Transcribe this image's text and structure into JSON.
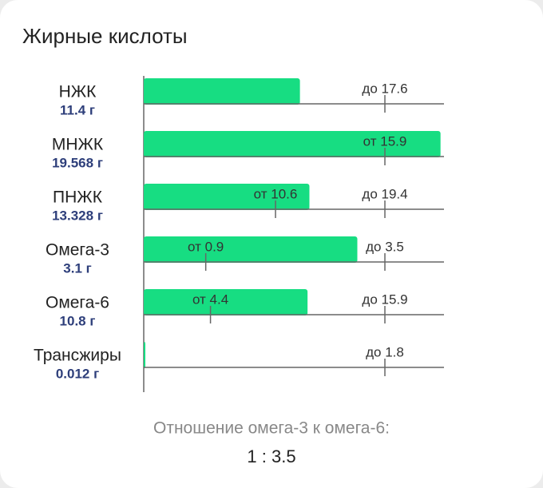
{
  "title": "Жирные кислоты",
  "rows": [
    {
      "label": "НЖК",
      "value": 11.4,
      "value_label": "11.4 г",
      "refs": [
        {
          "label": "до 17.6",
          "value": 17.6
        }
      ]
    },
    {
      "label": "МНЖК",
      "value": 19.568,
      "value_label": "19.568 г",
      "refs": [
        {
          "label": "от 15.9",
          "value": 15.9
        }
      ]
    },
    {
      "label": "ПНЖК",
      "value": 13.328,
      "value_label": "13.328 г",
      "refs": [
        {
          "label": "от 10.6",
          "value": 10.6
        },
        {
          "label": "до 19.4",
          "value": 19.4
        }
      ]
    },
    {
      "label": "Омега-3",
      "value": 3.1,
      "value_label": "3.1 г",
      "refs": [
        {
          "label": "от 0.9",
          "value": 0.9
        },
        {
          "label": "до 3.5",
          "value": 3.5
        }
      ]
    },
    {
      "label": "Омега-6",
      "value": 10.8,
      "value_label": "10.8 г",
      "refs": [
        {
          "label": "от 4.4",
          "value": 4.4
        },
        {
          "label": "до 15.9",
          "value": 15.9
        }
      ]
    },
    {
      "label": "Трансжиры",
      "value": 0.012,
      "value_label": "0.012 г",
      "refs": [
        {
          "label": "до 1.8",
          "value": 1.8
        }
      ]
    }
  ],
  "bar_color": "#17dd82",
  "footer": {
    "caption": "Отношение омега-3 к омега-6:",
    "ratio": "1 : 3.5"
  }
}
